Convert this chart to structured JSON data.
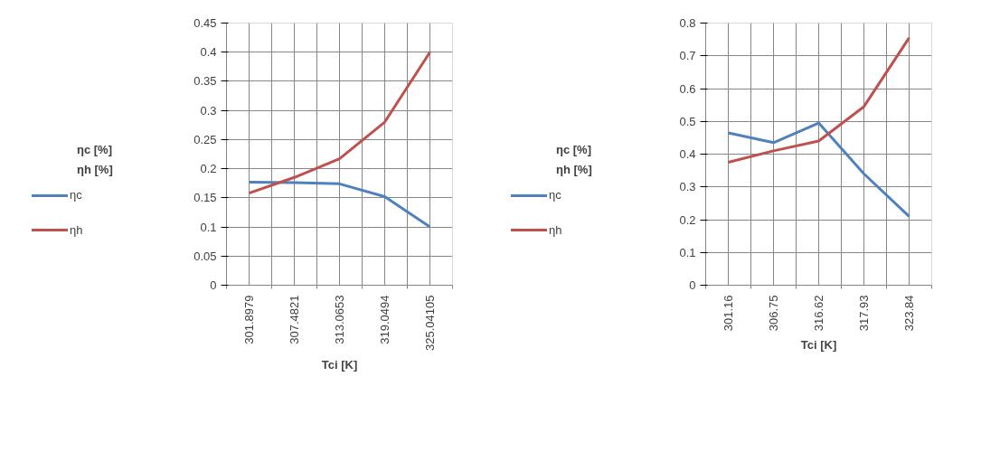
{
  "chart_data": [
    {
      "type": "line",
      "xlabel": "Tci [K]",
      "ylabel": "ηc [%]\nηh [%]",
      "categories": [
        "301.8979",
        "307.4821",
        "313.0653",
        "319.0494",
        "325.04105"
      ],
      "ylim": [
        0,
        0.45
      ],
      "yticks": [
        0,
        0.05,
        0.1,
        0.15,
        0.2,
        0.25,
        0.3,
        0.35,
        0.4,
        0.45
      ],
      "grid": true,
      "legend": "left",
      "series": [
        {
          "name": "ηc",
          "color": "#4f81bd",
          "values": [
            0.177,
            0.176,
            0.174,
            0.152,
            0.1
          ]
        },
        {
          "name": "ηh",
          "color": "#c0504d",
          "values": [
            0.158,
            0.185,
            0.217,
            0.28,
            0.4
          ]
        }
      ]
    },
    {
      "type": "line",
      "xlabel": "Tci [K]",
      "ylabel": "ηc [%]\nηh [%]",
      "categories": [
        "301.16",
        "306.75",
        "316.62",
        "317.93",
        "323.84"
      ],
      "ylim": [
        0,
        0.8
      ],
      "yticks": [
        0,
        0.1,
        0.2,
        0.3,
        0.4,
        0.5,
        0.6,
        0.7,
        0.8
      ],
      "grid": true,
      "legend": "left",
      "series": [
        {
          "name": "ηc",
          "color": "#4f81bd",
          "values": [
            0.465,
            0.435,
            0.495,
            0.34,
            0.21
          ]
        },
        {
          "name": "ηh",
          "color": "#c0504d",
          "values": [
            0.375,
            0.41,
            0.44,
            0.545,
            0.755
          ]
        }
      ]
    }
  ]
}
